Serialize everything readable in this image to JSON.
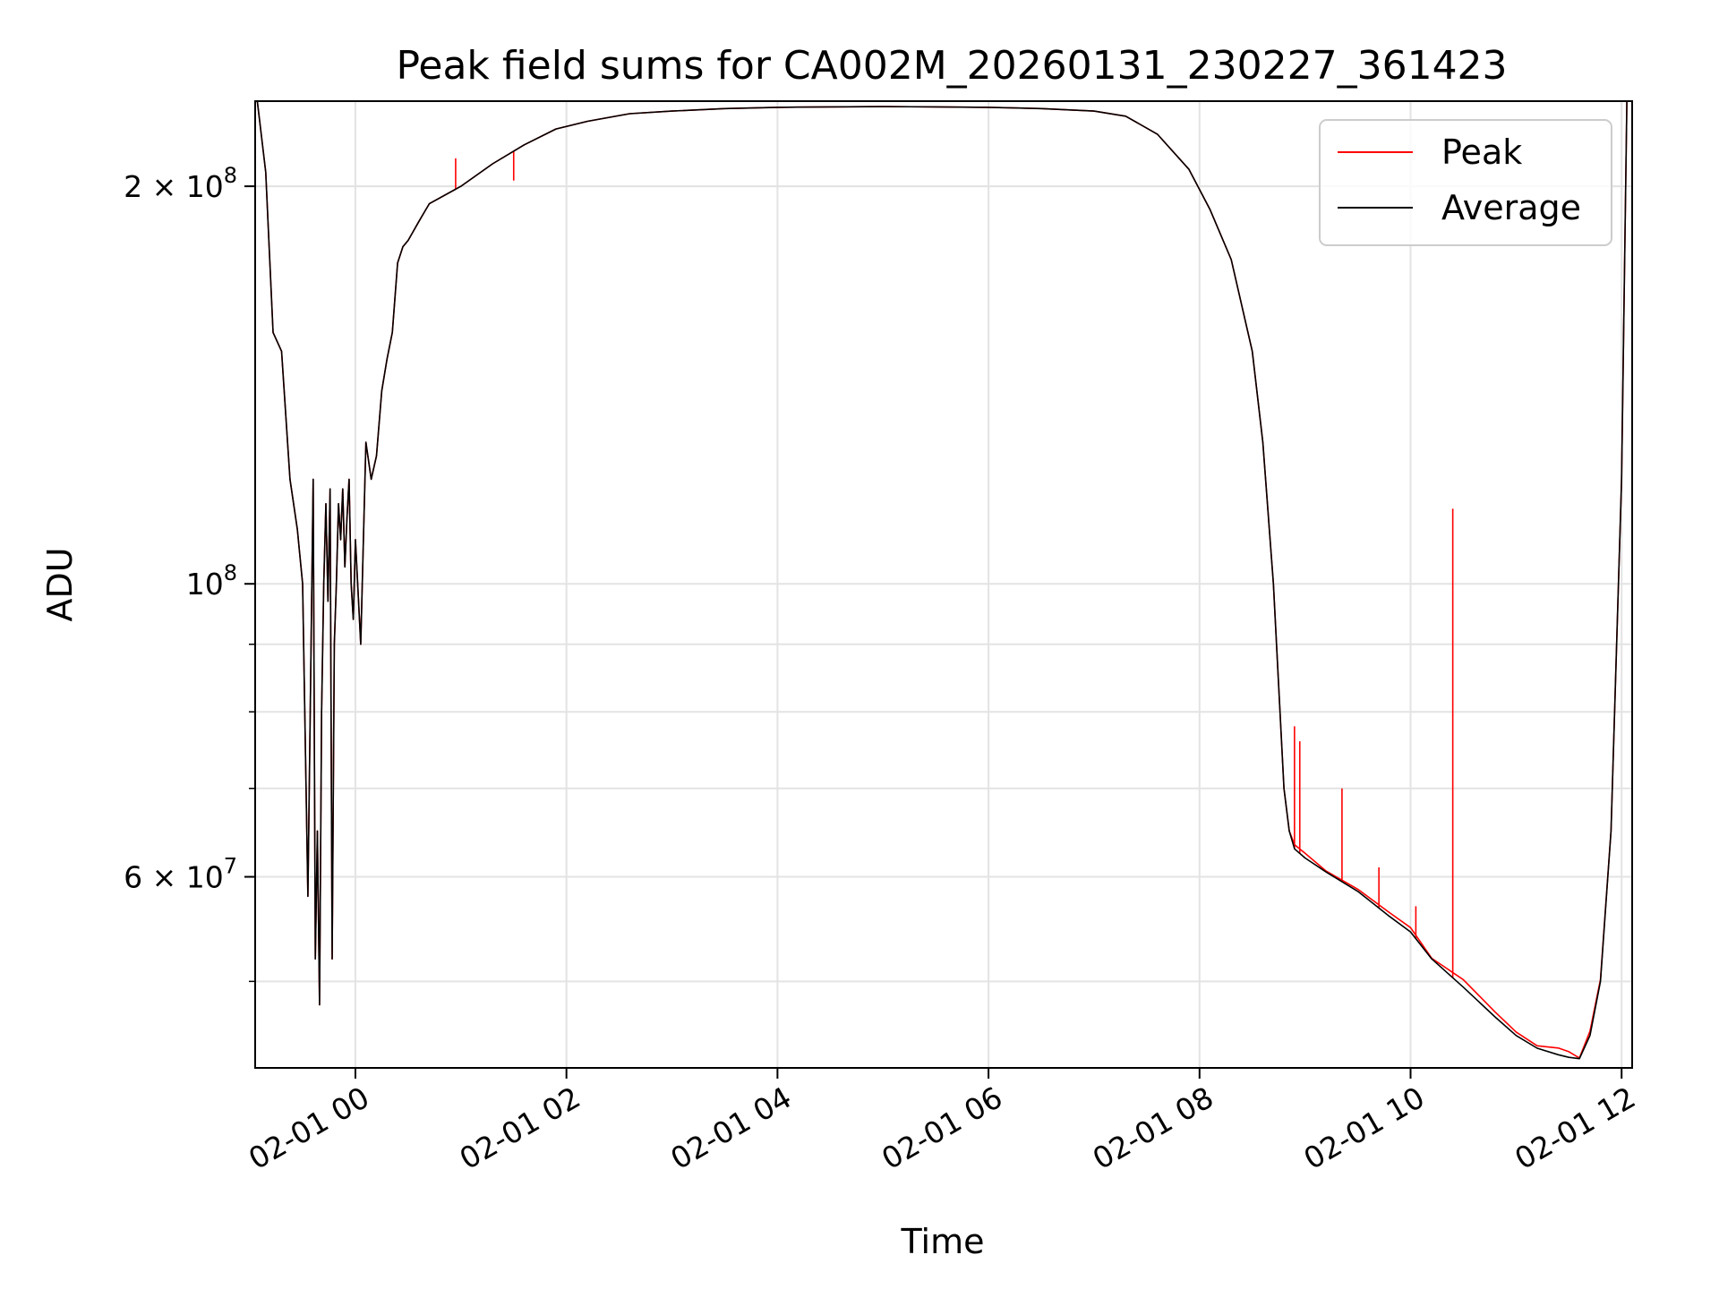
{
  "chart_data": {
    "type": "line",
    "title": "Peak field sums for CA002M_20260131_230227_361423",
    "xlabel": "Time",
    "ylabel": "ADU",
    "yscale": "log",
    "xlim_hours": [
      -0.95,
      12.1
    ],
    "ylim": [
      43000000,
      232000000
    ],
    "grid": true,
    "legend_position": "top-right",
    "x_ticks": [
      {
        "hour": 0,
        "label": "02-01 00"
      },
      {
        "hour": 2,
        "label": "02-01 02"
      },
      {
        "hour": 4,
        "label": "02-01 04"
      },
      {
        "hour": 6,
        "label": "02-01 06"
      },
      {
        "hour": 8,
        "label": "02-01 08"
      },
      {
        "hour": 10,
        "label": "02-01 10"
      },
      {
        "hour": 12,
        "label": "02-01 12"
      }
    ],
    "y_ticks_labeled": [
      {
        "value": 200000000,
        "base": "2 × 10",
        "exp": "8"
      },
      {
        "value": 100000000,
        "base": "10",
        "exp": "8"
      },
      {
        "value": 60000000,
        "base": "6 × 10",
        "exp": "7"
      }
    ],
    "y_minor_values": [
      50000000,
      60000000,
      70000000,
      80000000,
      90000000,
      200000000
    ],
    "x_unit": "hours since 02-01 00:00",
    "series": [
      {
        "name": "Average",
        "color": "#000000",
        "x": [
          -0.93,
          -0.85,
          -0.78,
          -0.7,
          -0.62,
          -0.55,
          -0.5,
          -0.45,
          -0.4,
          -0.38,
          -0.36,
          -0.34,
          -0.32,
          -0.3,
          -0.28,
          -0.26,
          -0.24,
          -0.22,
          -0.2,
          -0.18,
          -0.16,
          -0.14,
          -0.12,
          -0.1,
          -0.08,
          -0.06,
          -0.04,
          -0.02,
          0.0,
          0.05,
          0.1,
          0.15,
          0.2,
          0.25,
          0.3,
          0.35,
          0.4,
          0.45,
          0.5,
          0.55,
          0.6,
          0.65,
          0.7,
          1.0,
          1.3,
          1.6,
          1.9,
          2.2,
          2.6,
          3.0,
          3.5,
          4.0,
          4.5,
          5.0,
          5.5,
          6.0,
          6.5,
          7.0,
          7.3,
          7.6,
          7.9,
          8.1,
          8.3,
          8.5,
          8.6,
          8.7,
          8.8,
          8.85,
          8.9,
          9.0,
          9.2,
          9.5,
          9.8,
          10.0,
          10.2,
          10.5,
          10.8,
          11.0,
          11.2,
          11.4,
          11.5,
          11.6,
          11.7,
          11.8,
          11.9,
          12.0,
          12.05
        ],
        "values": [
          232000000,
          205000000,
          155000000,
          150000000,
          120000000,
          110000000,
          100000000,
          58000000,
          120000000,
          52000000,
          65000000,
          48000000,
          80000000,
          100000000,
          115000000,
          97000000,
          118000000,
          52000000,
          90000000,
          100000000,
          115000000,
          108000000,
          118000000,
          103000000,
          112000000,
          120000000,
          100000000,
          94000000,
          108000000,
          90000000,
          128000000,
          120000000,
          125000000,
          140000000,
          148000000,
          155000000,
          175000000,
          180000000,
          182000000,
          185000000,
          188000000,
          191000000,
          194000000,
          200000000,
          208000000,
          215000000,
          221000000,
          224000000,
          227000000,
          228000000,
          229000000,
          229500000,
          229700000,
          229800000,
          229700000,
          229500000,
          229000000,
          228000000,
          226000000,
          219000000,
          206000000,
          192000000,
          176000000,
          150000000,
          128000000,
          100000000,
          70000000,
          65000000,
          63000000,
          62000000,
          60500000,
          58500000,
          56000000,
          54500000,
          52000000,
          49500000,
          47000000,
          45500000,
          44500000,
          44000000,
          43800000,
          43700000,
          45500000,
          50000000,
          65000000,
          120000000,
          232000000
        ]
      },
      {
        "name": "Peak",
        "color": "#ff0000",
        "spikes": [
          {
            "x": 0.95,
            "value": 210000000
          },
          {
            "x": 1.5,
            "value": 202000000
          },
          {
            "x": 8.9,
            "value": 78000000
          },
          {
            "x": 8.95,
            "value": 76000000
          },
          {
            "x": 9.35,
            "value": 70000000
          },
          {
            "x": 9.7,
            "value": 61000000
          },
          {
            "x": 10.05,
            "value": 57000000
          },
          {
            "x": 10.4,
            "value": 114000000
          }
        ]
      }
    ]
  }
}
